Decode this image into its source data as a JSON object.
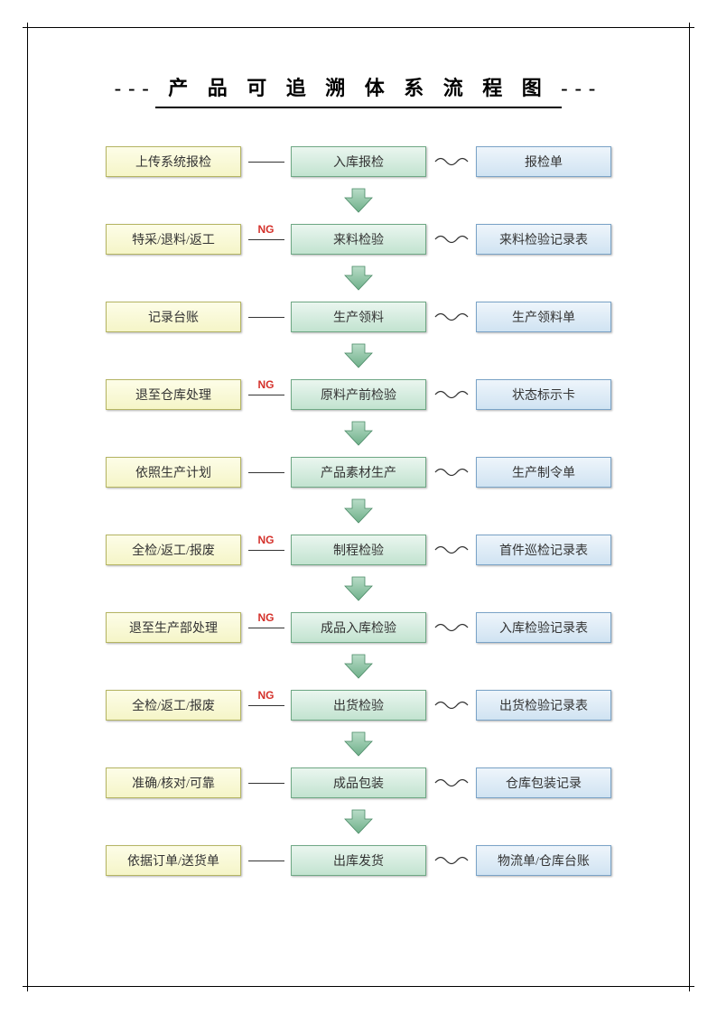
{
  "title": "--- 产 品 可 追 溯 体 系 流 程 图 ---",
  "colors": {
    "left_box_gradient": [
      "#fdfde8",
      "#f5f5c8"
    ],
    "left_box_border": "#b5b563",
    "center_box_gradient": [
      "#eaf6ef",
      "#c2e3d0"
    ],
    "center_box_border": "#6fa885",
    "right_box_gradient": [
      "#eef5fb",
      "#d0e3f2"
    ],
    "right_box_border": "#7aa3c7",
    "ng_label": "#d4302a",
    "arrow_fill": "#6fb08a",
    "arrow_stroke": "#4a8a66",
    "line": "#333333",
    "background": "#ffffff",
    "border": "#000000"
  },
  "box_size": {
    "width": 150,
    "height": 34
  },
  "connector_width": 55,
  "arrow_gap_height": 48,
  "rows": [
    {
      "left": "上传系统报检",
      "center": "入库报检",
      "right": "报检单",
      "ng": false
    },
    {
      "left": "特采/退料/返工",
      "center": "来料检验",
      "right": "来料检验记录表",
      "ng": true
    },
    {
      "left": "记录台账",
      "center": "生产领料",
      "right": "生产领料单",
      "ng": false
    },
    {
      "left": "退至仓库处理",
      "center": "原料产前检验",
      "right": "状态标示卡",
      "ng": true
    },
    {
      "left": "依照生产计划",
      "center": "产品素材生产",
      "right": "生产制令单",
      "ng": false
    },
    {
      "left": "全检/返工/报废",
      "center": "制程检验",
      "right": "首件巡检记录表",
      "ng": true
    },
    {
      "left": "退至生产部处理",
      "center": "成品入库检验",
      "right": "入库检验记录表",
      "ng": true
    },
    {
      "left": "全检/返工/报废",
      "center": "出货检验",
      "right": "出货检验记录表",
      "ng": true
    },
    {
      "left": "准确/核对/可靠",
      "center": "成品包装",
      "right": "仓库包装记录",
      "ng": false
    },
    {
      "left": "依据订单/送货单",
      "center": "出库发货",
      "right": "物流单/仓库台账",
      "ng": false
    }
  ]
}
